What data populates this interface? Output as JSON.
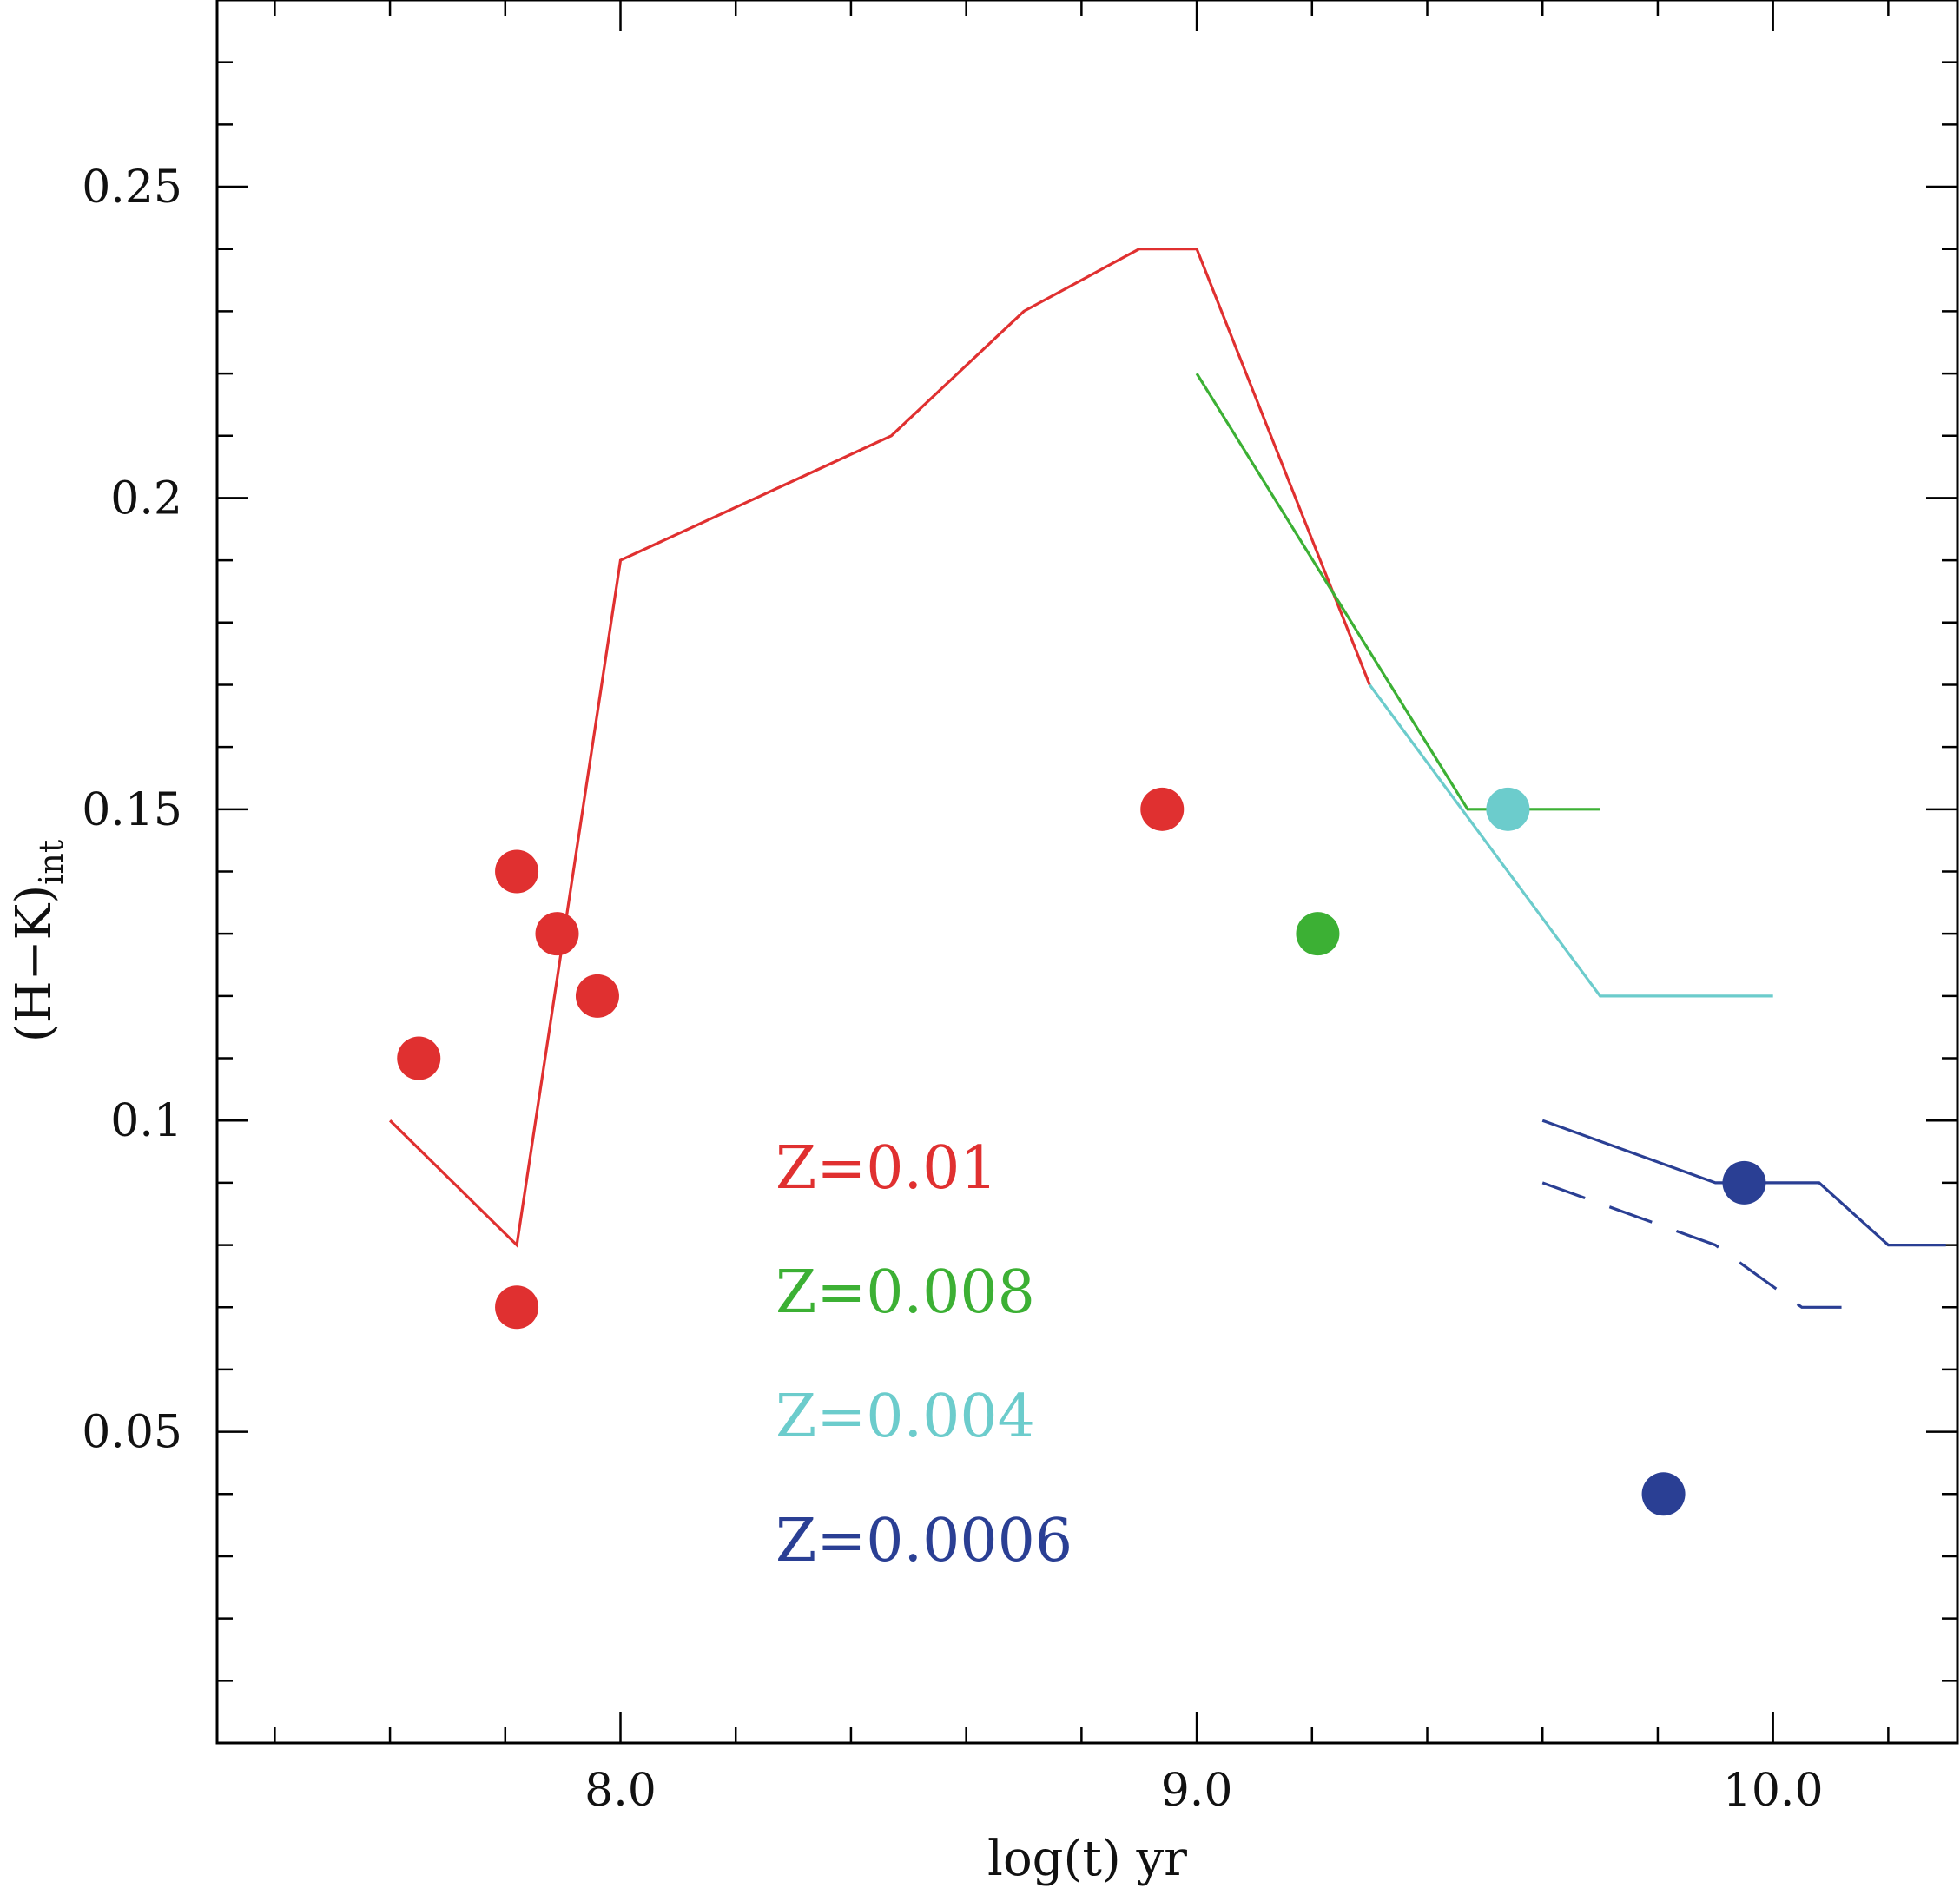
{
  "chart_data": {
    "type": "line",
    "title": "",
    "xlabel": "log(t) yr",
    "ylabel_main": "(H−K)",
    "ylabel_sub": "int",
    "xlim": [
      7.3,
      10.32
    ],
    "ylim": [
      0.0,
      0.28
    ],
    "x_major_ticks": [
      8.0,
      9.0,
      10.0
    ],
    "x_tick_labels": [
      "8.0",
      "9.0",
      "10.0"
    ],
    "x_minor_step": 0.2,
    "y_major_ticks": [
      0.05,
      0.1,
      0.15,
      0.2,
      0.25
    ],
    "y_tick_labels": [
      "0.05",
      "0.1",
      "0.15",
      "0.2",
      "0.25"
    ],
    "y_minor_step": 0.01,
    "grid": false,
    "colors": {
      "red": "#e03030",
      "green": "#3cb034",
      "cyan": "#6ccccc",
      "blue": "#2a3f94"
    },
    "series": [
      {
        "name": "Z=0.01 model",
        "color": "#e03030",
        "dash": "solid",
        "points": [
          [
            7.6,
            0.1
          ],
          [
            7.82,
            0.08
          ],
          [
            8.0,
            0.19
          ],
          [
            8.47,
            0.21
          ],
          [
            8.7,
            0.23
          ],
          [
            8.9,
            0.24
          ],
          [
            9.0,
            0.24
          ],
          [
            9.3,
            0.17
          ]
        ]
      },
      {
        "name": "Z=0.008 model",
        "color": "#3cb034",
        "dash": "solid",
        "points": [
          [
            9.0,
            0.22
          ],
          [
            9.47,
            0.15
          ],
          [
            9.7,
            0.15
          ]
        ]
      },
      {
        "name": "Z=0.004 model",
        "color": "#6ccccc",
        "dash": "solid",
        "points": [
          [
            9.3,
            0.17
          ],
          [
            9.7,
            0.12
          ],
          [
            10.0,
            0.12
          ]
        ]
      },
      {
        "name": "Z=0.0006 model",
        "color": "#2a3f94",
        "dash": "solid",
        "points": [
          [
            9.6,
            0.1
          ],
          [
            9.9,
            0.09
          ],
          [
            10.08,
            0.09
          ],
          [
            10.2,
            0.08
          ],
          [
            10.3,
            0.08
          ]
        ]
      },
      {
        "name": "Z=0.0006 model (dashed)",
        "color": "#2a3f94",
        "dash": "dashed",
        "points": [
          [
            9.6,
            0.09
          ],
          [
            9.9,
            0.08
          ],
          [
            10.05,
            0.07
          ],
          [
            10.15,
            0.07
          ]
        ]
      }
    ],
    "scatter": [
      {
        "x": 7.65,
        "y": 0.11,
        "color": "#e03030"
      },
      {
        "x": 7.82,
        "y": 0.14,
        "color": "#e03030"
      },
      {
        "x": 7.89,
        "y": 0.13,
        "color": "#e03030"
      },
      {
        "x": 7.96,
        "y": 0.12,
        "color": "#e03030"
      },
      {
        "x": 7.82,
        "y": 0.07,
        "color": "#e03030"
      },
      {
        "x": 8.94,
        "y": 0.15,
        "color": "#e03030"
      },
      {
        "x": 9.21,
        "y": 0.13,
        "color": "#3cb034"
      },
      {
        "x": 9.54,
        "y": 0.15,
        "color": "#6ccccc"
      },
      {
        "x": 9.95,
        "y": 0.09,
        "color": "#2a3f94"
      },
      {
        "x": 9.81,
        "y": 0.04,
        "color": "#2a3f94"
      }
    ],
    "legend": [
      {
        "label": "Z=0.01",
        "color": "#e03030"
      },
      {
        "label": "Z=0.008",
        "color": "#3cb034"
      },
      {
        "label": "Z=0.004",
        "color": "#6ccccc"
      },
      {
        "label": "Z=0.0006",
        "color": "#2a3f94"
      }
    ],
    "legend_position": "center-bottom"
  }
}
